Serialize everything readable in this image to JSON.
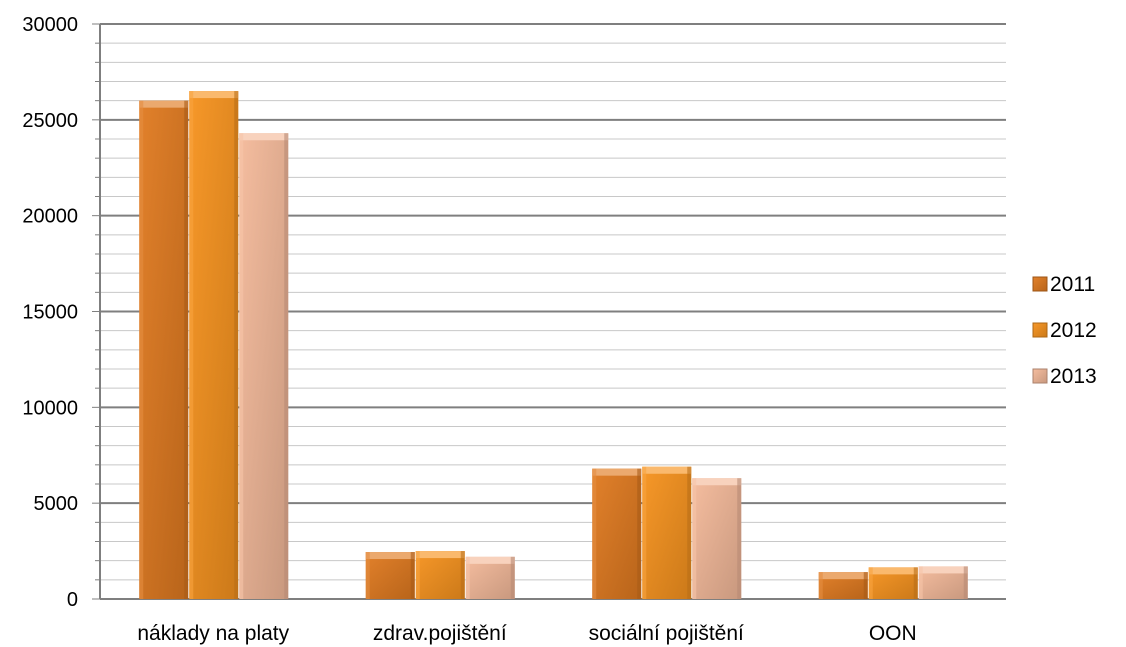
{
  "chart_data": {
    "type": "bar",
    "categories": [
      "náklady na platy",
      "zdrav.pojištění",
      "sociální pojištění",
      "OON"
    ],
    "series": [
      {
        "name": "2011",
        "values": [
          26000,
          2450,
          6800,
          1400
        ],
        "color": "#E07A20"
      },
      {
        "name": "2012",
        "values": [
          26500,
          2500,
          6900,
          1650
        ],
        "color": "#F7931E"
      },
      {
        "name": "2013",
        "values": [
          24300,
          2200,
          6300,
          1700
        ],
        "color": "#F4B99A"
      }
    ],
    "y_ticks": [
      "0",
      "5000",
      "10000",
      "15000",
      "20000",
      "25000",
      "30000"
    ],
    "ylim": [
      0,
      30000
    ],
    "major_step": 5000,
    "minor_step": 1000,
    "grid": true,
    "legend_position": "right",
    "title": "",
    "xlabel": "",
    "ylabel": ""
  }
}
